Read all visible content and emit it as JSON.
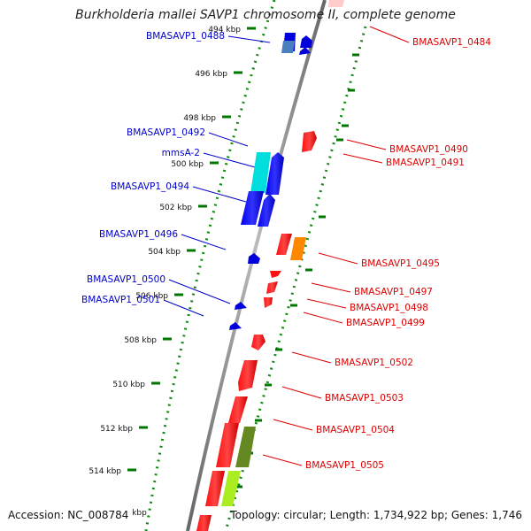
{
  "header": {
    "title": "Burkholderia mallei SAVP1 chromosome II, complete genome"
  },
  "footer": {
    "accession": "Accession: NC_008784",
    "topology": "Topology: circular; Length: 1,734,922 bp; Genes: 1,746"
  },
  "axis_unit": "kbp",
  "ticks": [
    {
      "kbp": 494,
      "label": "494 kbp"
    },
    {
      "kbp": 496,
      "label": "496 kbp"
    },
    {
      "kbp": 498,
      "label": "498 kbp"
    },
    {
      "kbp": 500,
      "label": "500 kbp"
    },
    {
      "kbp": 502,
      "label": "502 kbp"
    },
    {
      "kbp": 504,
      "label": "504 kbp"
    },
    {
      "kbp": 506,
      "label": "506 kbp"
    },
    {
      "kbp": 508,
      "label": "508 kbp"
    },
    {
      "kbp": 510,
      "label": "510 kbp"
    },
    {
      "kbp": 512,
      "label": "512 kbp"
    },
    {
      "kbp": 514,
      "label": "514 kbp"
    }
  ],
  "left_labels": [
    {
      "text": "BMASAVP1_0488",
      "color": "#0000cc"
    },
    {
      "text": "BMASAVP1_0492",
      "color": "#0000cc"
    },
    {
      "text": "mmsA-2",
      "color": "#0000cc"
    },
    {
      "text": "BMASAVP1_0494",
      "color": "#0000cc"
    },
    {
      "text": "BMASAVP1_0496",
      "color": "#0000cc"
    },
    {
      "text": "BMASAVP1_0500",
      "color": "#0000cc"
    },
    {
      "text": "BMASAVP1_0501",
      "color": "#0000cc"
    }
  ],
  "right_labels": [
    {
      "text": "BMASAVP1_0484",
      "color": "#dd0000"
    },
    {
      "text": "BMASAVP1_0490",
      "color": "#dd0000"
    },
    {
      "text": "BMASAVP1_0491",
      "color": "#dd0000"
    },
    {
      "text": "BMASAVP1_0495",
      "color": "#dd0000"
    },
    {
      "text": "BMASAVP1_0497",
      "color": "#dd0000"
    },
    {
      "text": "BMASAVP1_0498",
      "color": "#dd0000"
    },
    {
      "text": "BMASAVP1_0499",
      "color": "#dd0000"
    },
    {
      "text": "BMASAVP1_0502",
      "color": "#dd0000"
    },
    {
      "text": "BMASAVP1_0503",
      "color": "#dd0000"
    },
    {
      "text": "BMASAVP1_0504",
      "color": "#dd0000"
    },
    {
      "text": "BMASAVP1_0505",
      "color": "#dd0000"
    }
  ],
  "colors": {
    "backbone": "#888888",
    "ticks": "#007700",
    "forward_strand": "#0000dd",
    "reverse_strand": "#dd0000",
    "cyan_feature": "#00dddd",
    "orange_feature": "#ff8800",
    "olive_feature": "#668822",
    "lime_feature": "#aaee22",
    "steel_feature": "#4a7fbf"
  }
}
